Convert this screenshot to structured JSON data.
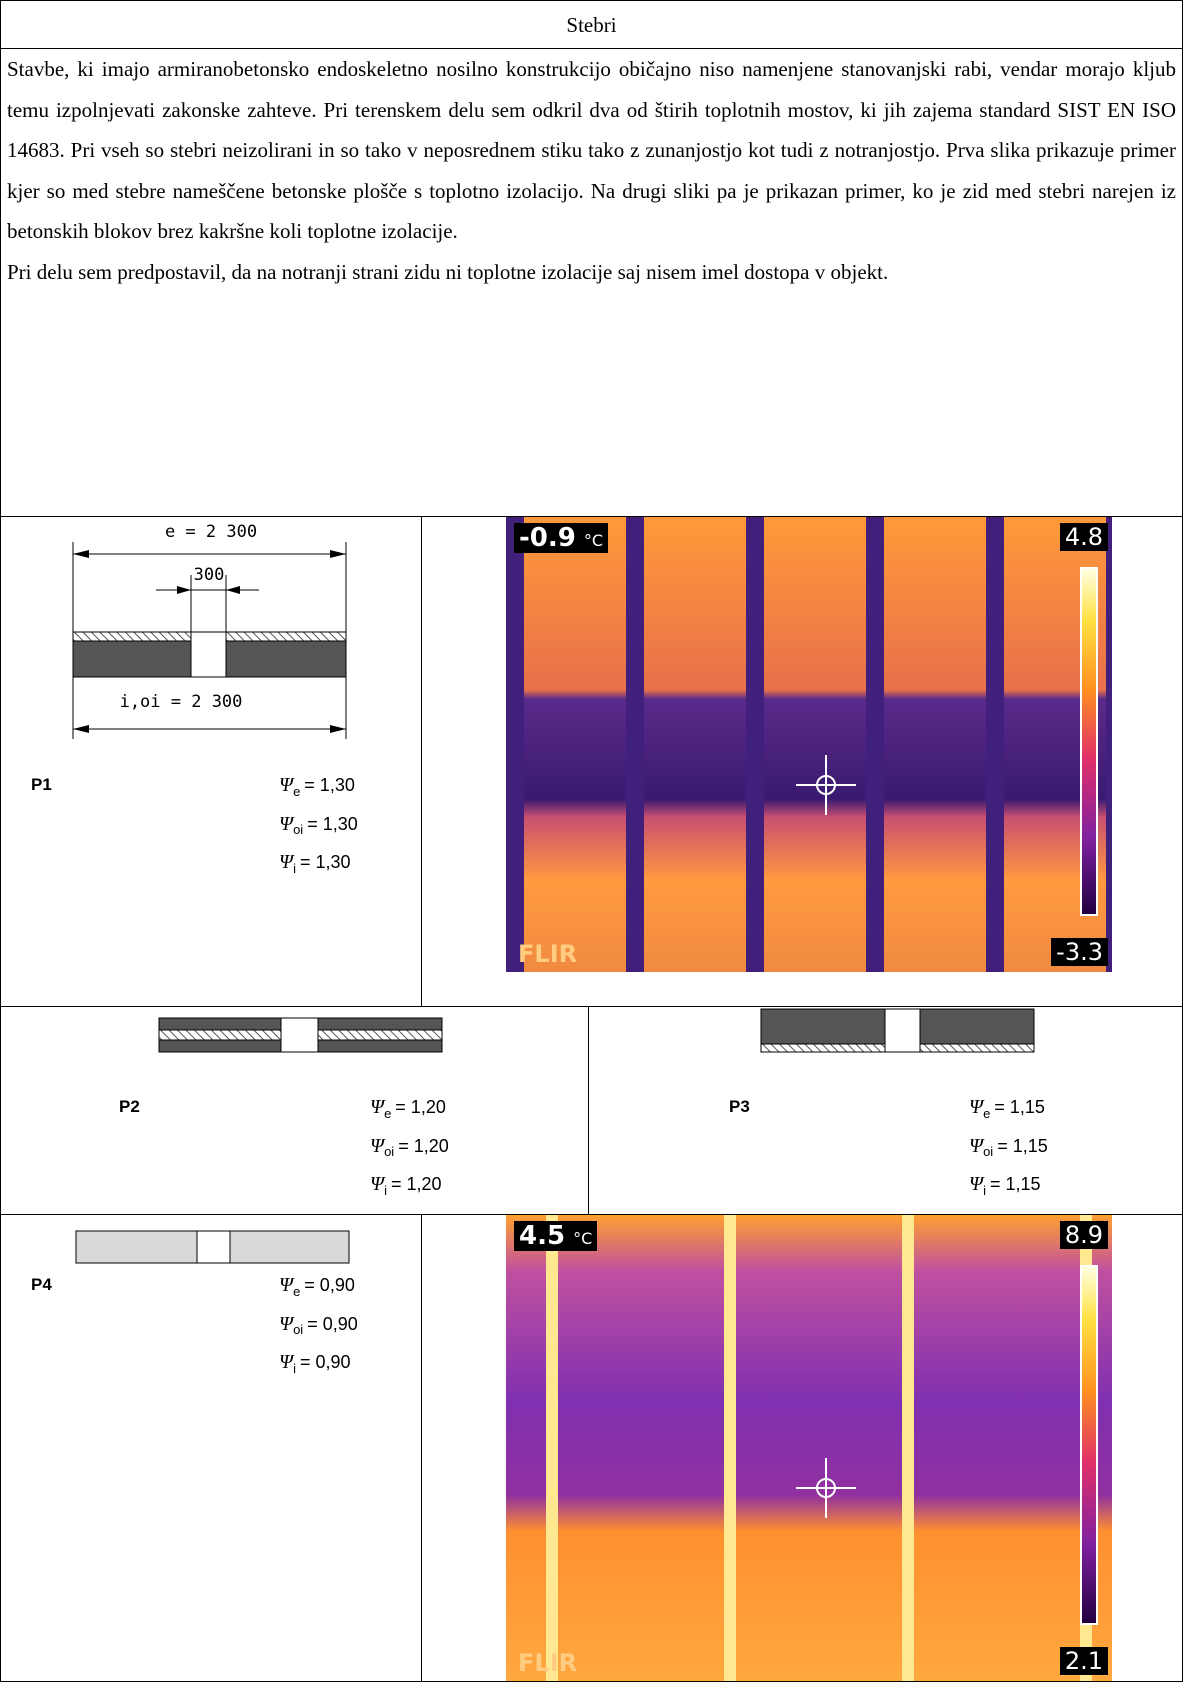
{
  "header": {
    "title": "Stebri"
  },
  "body": {
    "paragraphs": [
      "Stavbe, ki imajo armiranobetonsko endoskeletno nosilno konstrukcijo običajno niso namenjene stanovanjski rabi, vendar morajo kljub temu izpolnjevati zakonske zahteve. Pri terenskem delu sem odkril dva od štirih toplotnih mostov, ki jih zajema standard SIST EN ISO 14683. Pri vseh so stebri neizolirani in so tako v neposrednem stiku tako z zunanjostjo kot tudi z notranjostjo. Prva slika prikazuje primer kjer so med stebre nameščene betonske plošče s toplotno izolacijo. Na drugi sliki pa je prikazan primer, ko je zid med stebri narejen iz betonskih blokov brez kakršne koli toplotne izolacije.",
      "Pri delu sem predpostavil, da na notranji strani zidu ni toplotne izolacije saj nisem imel dostopa v objekt."
    ]
  },
  "p1": {
    "label": "P1",
    "dim_e": "e = 2 300",
    "dim_col": "300",
    "dim_i": "i,oi = 2 300",
    "psi": [
      {
        "symbol": "Ψ",
        "sub": "e",
        "value": "= 1,30"
      },
      {
        "symbol": "Ψ",
        "sub": "oi",
        "value": "= 1,30"
      },
      {
        "symbol": "Ψ",
        "sub": "i",
        "value": "= 1,30"
      }
    ]
  },
  "p2": {
    "label": "P2",
    "psi": [
      {
        "symbol": "Ψ",
        "sub": "e",
        "value": "= 1,20"
      },
      {
        "symbol": "Ψ",
        "sub": "oi",
        "value": "= 1,20"
      },
      {
        "symbol": "Ψ",
        "sub": "i",
        "value": "= 1,20"
      }
    ]
  },
  "p3": {
    "label": "P3",
    "psi": [
      {
        "symbol": "Ψ",
        "sub": "e",
        "value": "= 1,15"
      },
      {
        "symbol": "Ψ",
        "sub": "oi",
        "value": "= 1,15"
      },
      {
        "symbol": "Ψ",
        "sub": "i",
        "value": "= 1,15"
      }
    ]
  },
  "p4": {
    "label": "P4",
    "psi": [
      {
        "symbol": "Ψ",
        "sub": "e",
        "value": "= 0,90"
      },
      {
        "symbol": "Ψ",
        "sub": "oi",
        "value": "= 0,90"
      },
      {
        "symbol": "Ψ",
        "sub": "i",
        "value": "= 0,90"
      }
    ]
  },
  "thermal1": {
    "spot": "-0.9",
    "unit": "°C",
    "max": "4.8",
    "min": "-3.3",
    "brand": "FLIR"
  },
  "thermal2": {
    "spot": "4.5",
    "unit": "°C",
    "max": "8.9",
    "min": "2.1",
    "brand": "FLIR"
  }
}
